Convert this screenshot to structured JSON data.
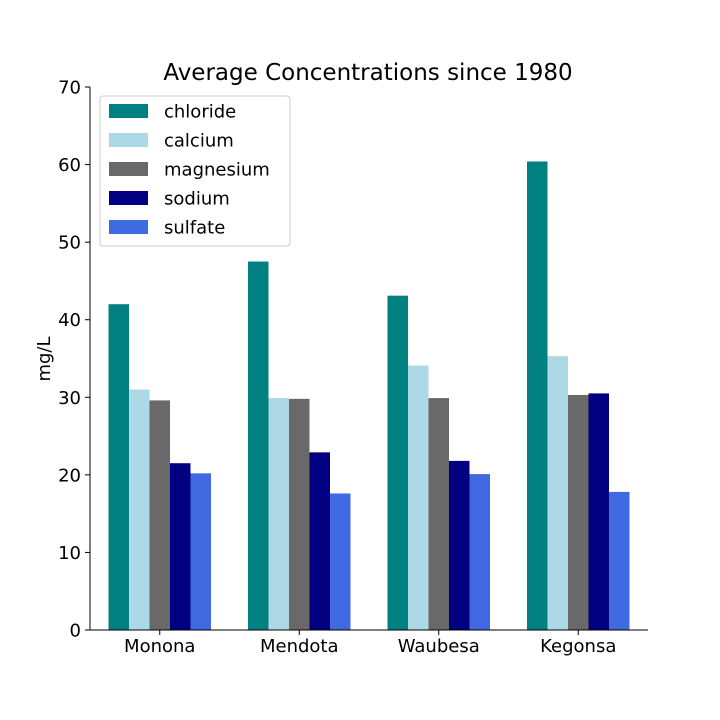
{
  "chart_data": {
    "type": "bar",
    "title": "Average Concentrations since 1980",
    "xlabel": "",
    "ylabel": "mg/L",
    "ylim": [
      0,
      70
    ],
    "yticks": [
      0,
      10,
      20,
      30,
      40,
      50,
      60,
      70
    ],
    "grid": false,
    "legend_position": "top-left",
    "categories": [
      "Monona",
      "Mendota",
      "Waubesa",
      "Kegonsa"
    ],
    "series": [
      {
        "name": "chloride",
        "color": "#008080",
        "values": [
          42.0,
          47.5,
          43.1,
          60.4
        ]
      },
      {
        "name": "calcium",
        "color": "#add8e6",
        "values": [
          31.0,
          29.9,
          34.1,
          35.3
        ]
      },
      {
        "name": "magnesium",
        "color": "#696969",
        "values": [
          29.6,
          29.8,
          29.9,
          30.3
        ]
      },
      {
        "name": "sodium",
        "color": "#000080",
        "values": [
          21.5,
          22.9,
          21.8,
          30.5
        ]
      },
      {
        "name": "sulfate",
        "color": "#4169e1",
        "values": [
          20.2,
          17.6,
          20.1,
          17.8
        ]
      }
    ]
  }
}
